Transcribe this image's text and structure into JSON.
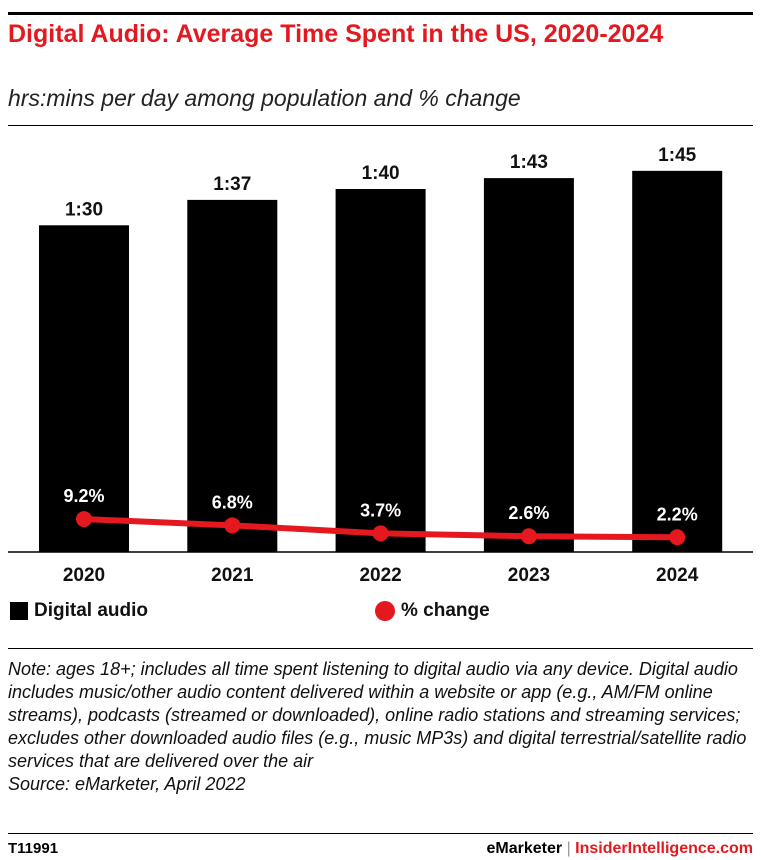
{
  "header": {
    "title": "Digital Audio: Average Time Spent in the US, 2020-2024",
    "subtitle": "hrs:mins per day among population and % change"
  },
  "chart_data": {
    "type": "bar",
    "categories": [
      "2020",
      "2021",
      "2022",
      "2023",
      "2024"
    ],
    "series": [
      {
        "name": "Digital audio",
        "type": "bar",
        "values_minutes": [
          90,
          97,
          100,
          103,
          105
        ],
        "labels": [
          "1:30",
          "1:37",
          "1:40",
          "1:43",
          "1:45"
        ],
        "color": "#000000"
      },
      {
        "name": "% change",
        "type": "line",
        "values": [
          9.2,
          6.8,
          3.7,
          2.6,
          2.2
        ],
        "labels": [
          "9.2%",
          "6.8%",
          "3.7%",
          "2.6%",
          "2.2%"
        ],
        "color": "#e4181f"
      }
    ],
    "legend": "bottom",
    "grid": false
  },
  "note": "Note: ages 18+; includes all time spent listening to digital audio via any device. Digital audio includes music/other audio content delivered within a website or app (e.g., AM/FM online streams), podcasts (streamed or downloaded), online radio stations and streaming services; excludes other downloaded audio files (e.g., music MP3s) and digital terrestrial/satellite radio services that are delivered over the air",
  "source": "Source: eMarketer, April 2022",
  "footer": {
    "id": "T11991",
    "brand1": "eMarketer",
    "sep": "|",
    "brand2": "InsiderIntelligence.com"
  }
}
